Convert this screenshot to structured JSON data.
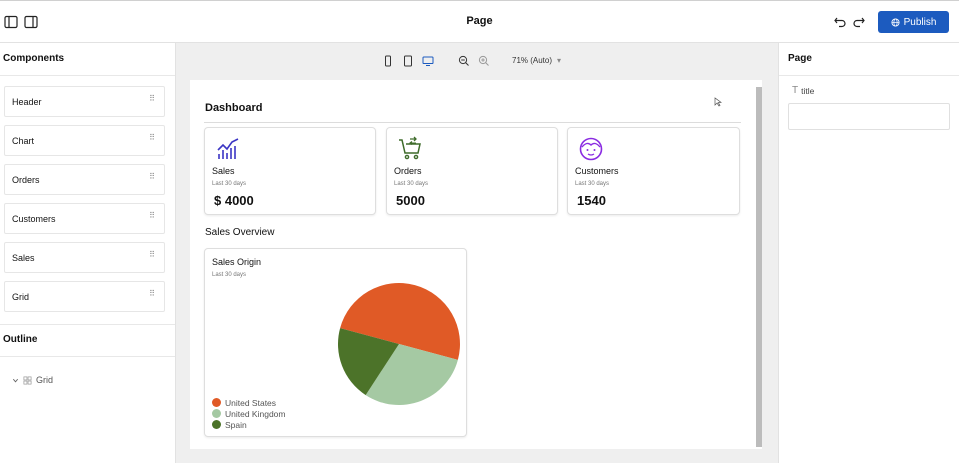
{
  "header": {
    "title": "Page",
    "publish_label": "Publish",
    "icons": [
      "sidebar-left-icon",
      "sidebar-right-icon",
      "undo-icon",
      "redo-icon",
      "globe-icon"
    ]
  },
  "left_panel": {
    "components_title": "Components",
    "components": [
      {
        "label": "Header"
      },
      {
        "label": "Chart"
      },
      {
        "label": "Orders"
      },
      {
        "label": "Customers"
      },
      {
        "label": "Sales"
      },
      {
        "label": "Grid"
      }
    ],
    "outline_title": "Outline",
    "outline_items": [
      {
        "label": "Grid"
      }
    ]
  },
  "toolbar": {
    "zoom_label": "71% (Auto)",
    "icons": [
      "mobile-icon",
      "tablet-icon",
      "desktop-icon",
      "zoom-out-icon",
      "zoom-in-icon"
    ]
  },
  "dashboard": {
    "title": "Dashboard",
    "cards": [
      {
        "label": "Sales",
        "subtitle": "Last 30 days",
        "value": "$ 4000",
        "icon": "chart-line-icon",
        "icon_color": "#3b35c4"
      },
      {
        "label": "Orders",
        "subtitle": "Last 30 days",
        "value": "5000",
        "icon": "cart-icon",
        "icon_color": "#3e6b2a"
      },
      {
        "label": "Customers",
        "subtitle": "Last 30 days",
        "value": "1540",
        "icon": "face-icon",
        "icon_color": "#8a2be2"
      }
    ],
    "overview_title": "Sales Overview",
    "pie_card": {
      "title": "Sales Origin",
      "subtitle": "Last 30 days"
    }
  },
  "chart_data": {
    "type": "pie",
    "title": "Sales Origin",
    "categories": [
      "United States",
      "United Kingdom",
      "Spain"
    ],
    "values": [
      50,
      30,
      20
    ],
    "colors": [
      "#e05a26",
      "#a5c9a3",
      "#4c7329"
    ],
    "legend": "bottom-left"
  },
  "right_panel": {
    "title": "Page",
    "field_label": "title",
    "field_value": "",
    "field_placeholder": ""
  }
}
